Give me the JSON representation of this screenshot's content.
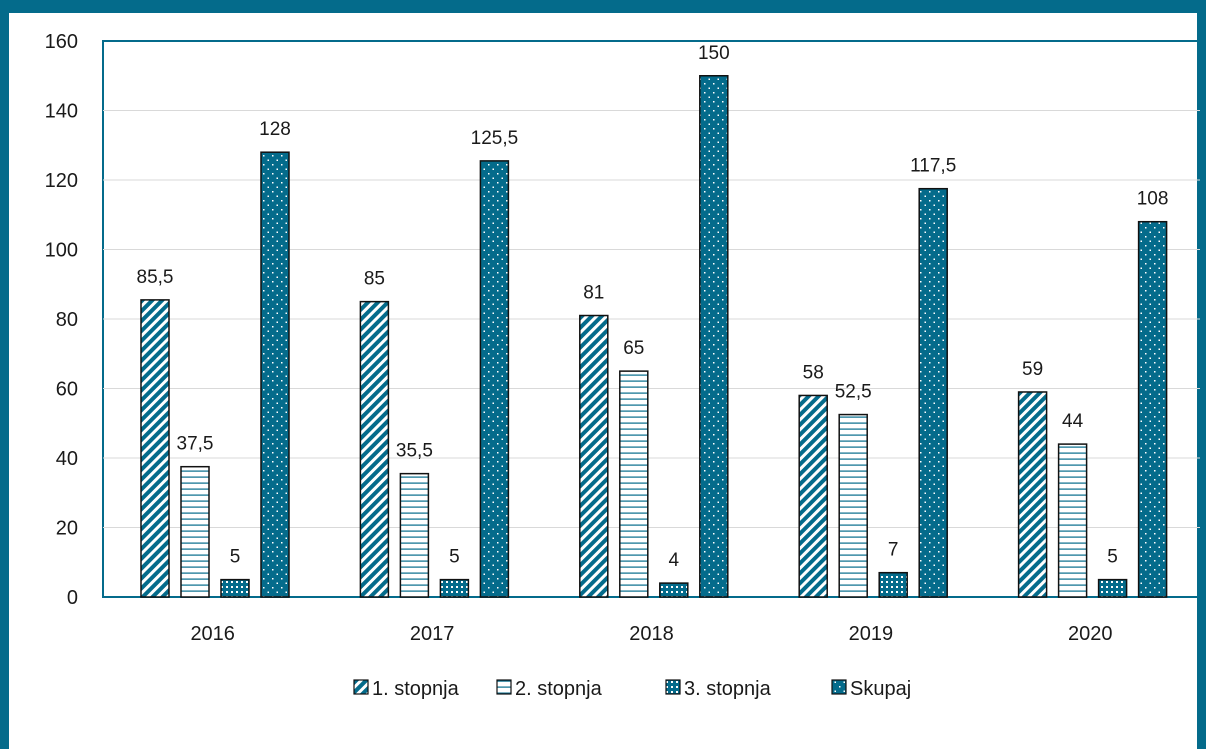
{
  "chart_data": {
    "type": "bar",
    "categories": [
      "2016",
      "2017",
      "2018",
      "2019",
      "2020"
    ],
    "series": [
      {
        "name": "1. stopnja",
        "values": [
          85.5,
          85,
          81,
          58,
          59
        ],
        "labels": [
          "85,5",
          "85",
          "81",
          "58",
          "59"
        ]
      },
      {
        "name": "2. stopnja",
        "values": [
          37.5,
          35.5,
          65,
          52.5,
          44
        ],
        "labels": [
          "37,5",
          "35,5",
          "65",
          "52,5",
          "44"
        ]
      },
      {
        "name": "3. stopnja",
        "values": [
          5,
          5,
          4,
          7,
          5
        ],
        "labels": [
          "5",
          "5",
          "4",
          "7",
          "5"
        ]
      },
      {
        "name": "Skupaj",
        "values": [
          128,
          125.5,
          150,
          117.5,
          108
        ],
        "labels": [
          "128",
          "125,5",
          "150",
          "117,5",
          "108"
        ]
      }
    ],
    "title": "",
    "xlabel": "",
    "ylabel": "",
    "ylim": [
      0,
      160
    ],
    "yticks": [
      "0",
      "20",
      "40",
      "60",
      "80",
      "100",
      "120",
      "140",
      "160"
    ],
    "grid": true,
    "legend_position": "bottom",
    "colors": {
      "frame": "#046b8b",
      "bar": "#046b8b",
      "outline": "#111111",
      "grid": "#d9d9d9"
    }
  }
}
